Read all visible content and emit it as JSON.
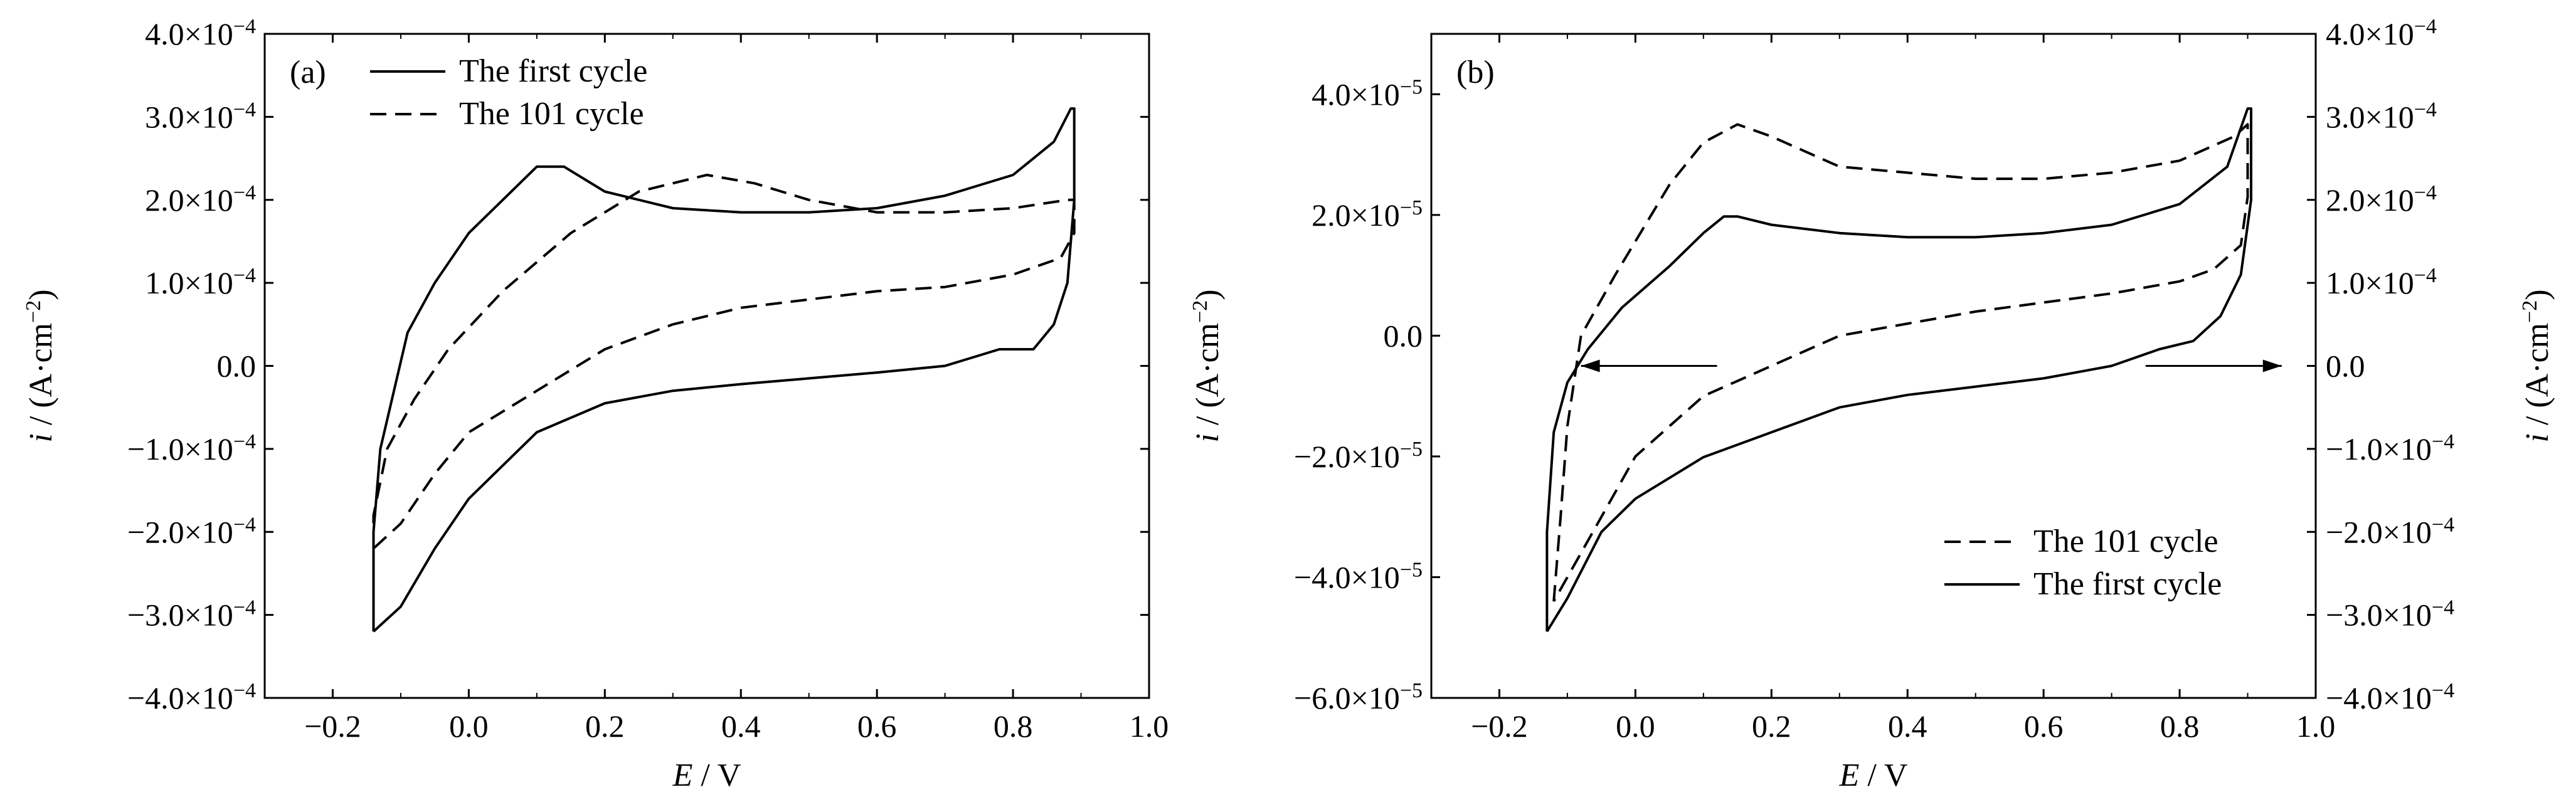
{
  "chart_data": [
    {
      "type": "line",
      "panel_label": "(a)",
      "xlabel_italic": "E",
      "xlabel_rest": " / V",
      "ylabel_italic": "i",
      "ylabel_rest": " / (A·cm",
      "ylabel_exp": "−2",
      "ylabel_close": ")",
      "xlim": [
        -0.3,
        1.0
      ],
      "ylim": [
        -0.0004,
        0.0004
      ],
      "xticks": [
        -0.2,
        0.0,
        0.2,
        0.4,
        0.6,
        0.8,
        1.0
      ],
      "xtick_labels": [
        "−0.2",
        "0.0",
        "0.2",
        "0.4",
        "0.6",
        "0.8",
        "1.0"
      ],
      "yticks": [
        {
          "value": 0.0004,
          "mantissa": "4.0",
          "exp": "−4"
        },
        {
          "value": 0.0003,
          "mantissa": "3.0",
          "exp": "−4"
        },
        {
          "value": 0.0002,
          "mantissa": "2.0",
          "exp": "−4"
        },
        {
          "value": 0.0001,
          "mantissa": "1.0",
          "exp": "−4"
        },
        {
          "value": 0.0,
          "mantissa": "0.0",
          "exp": ""
        },
        {
          "value": -0.0001,
          "mantissa": "−1.0",
          "exp": "−4"
        },
        {
          "value": -0.0002,
          "mantissa": "−2.0",
          "exp": "−4"
        },
        {
          "value": -0.0003,
          "mantissa": "−3.0",
          "exp": "−4"
        },
        {
          "value": -0.0004,
          "mantissa": "−4.0",
          "exp": "−4"
        }
      ],
      "legend": "top-left",
      "series": [
        {
          "name": "The first cycle",
          "dash": "solid",
          "points": [
            [
              -0.14,
              -0.00032
            ],
            [
              -0.14,
              -0.0002
            ],
            [
              -0.13,
              -0.0001
            ],
            [
              -0.11,
              -3e-05
            ],
            [
              -0.09,
              4e-05
            ],
            [
              -0.05,
              0.0001
            ],
            [
              0.0,
              0.00016
            ],
            [
              0.05,
              0.0002
            ],
            [
              0.1,
              0.00024
            ],
            [
              0.14,
              0.00024
            ],
            [
              0.2,
              0.00021
            ],
            [
              0.3,
              0.00019
            ],
            [
              0.4,
              0.000185
            ],
            [
              0.5,
              0.000185
            ],
            [
              0.6,
              0.00019
            ],
            [
              0.7,
              0.000205
            ],
            [
              0.8,
              0.00023
            ],
            [
              0.86,
              0.00027
            ],
            [
              0.885,
              0.00031
            ],
            [
              0.89,
              0.00031
            ],
            [
              0.89,
              0.0002
            ],
            [
              0.88,
              0.0001
            ],
            [
              0.86,
              5e-05
            ],
            [
              0.83,
              2e-05
            ],
            [
              0.78,
              2e-05
            ],
            [
              0.7,
              0.0
            ],
            [
              0.6,
              -8e-06
            ],
            [
              0.5,
              -1.5e-05
            ],
            [
              0.4,
              -2.2e-05
            ],
            [
              0.3,
              -3e-05
            ],
            [
              0.2,
              -4.5e-05
            ],
            [
              0.1,
              -8e-05
            ],
            [
              0.0,
              -0.00016
            ],
            [
              -0.05,
              -0.00022
            ],
            [
              -0.1,
              -0.00029
            ],
            [
              -0.14,
              -0.00032
            ]
          ]
        },
        {
          "name": "The 101 cycle",
          "dash": "dashed",
          "points": [
            [
              -0.14,
              -0.00022
            ],
            [
              -0.14,
              -0.00018
            ],
            [
              -0.12,
              -0.0001
            ],
            [
              -0.08,
              -4e-05
            ],
            [
              -0.03,
              2e-05
            ],
            [
              0.05,
              9e-05
            ],
            [
              0.15,
              0.00016
            ],
            [
              0.25,
              0.00021
            ],
            [
              0.35,
              0.00023
            ],
            [
              0.42,
              0.00022
            ],
            [
              0.5,
              0.0002
            ],
            [
              0.6,
              0.000185
            ],
            [
              0.7,
              0.000185
            ],
            [
              0.8,
              0.00019
            ],
            [
              0.88,
              0.0002
            ],
            [
              0.89,
              0.0002
            ],
            [
              0.89,
              0.00016
            ],
            [
              0.87,
              0.00013
            ],
            [
              0.8,
              0.00011
            ],
            [
              0.7,
              9.5e-05
            ],
            [
              0.6,
              9e-05
            ],
            [
              0.5,
              8e-05
            ],
            [
              0.4,
              7e-05
            ],
            [
              0.3,
              5e-05
            ],
            [
              0.2,
              2e-05
            ],
            [
              0.1,
              -3e-05
            ],
            [
              0.0,
              -8e-05
            ],
            [
              -0.05,
              -0.00013
            ],
            [
              -0.1,
              -0.00019
            ],
            [
              -0.14,
              -0.00022
            ]
          ]
        }
      ]
    },
    {
      "type": "line",
      "panel_label": "(b)",
      "xlabel_italic": "E",
      "xlabel_rest": " / V",
      "ylabel_italic": "i",
      "ylabel_rest": " / (A·cm",
      "ylabel_exp": "−2",
      "ylabel_close": ")",
      "xlim": [
        -0.3,
        1.0
      ],
      "ylim": [
        -6e-05,
        5e-05
      ],
      "xticks": [
        -0.2,
        0.0,
        0.2,
        0.4,
        0.6,
        0.8,
        1.0
      ],
      "xtick_labels": [
        "−0.2",
        "0.0",
        "0.2",
        "0.4",
        "0.6",
        "0.8",
        "1.0"
      ],
      "yticks": [
        {
          "value": 4e-05,
          "mantissa": "4.0",
          "exp": "−5"
        },
        {
          "value": 2e-05,
          "mantissa": "2.0",
          "exp": "−5"
        },
        {
          "value": 0.0,
          "mantissa": "0.0",
          "exp": ""
        },
        {
          "value": -2e-05,
          "mantissa": "−2.0",
          "exp": "−5"
        },
        {
          "value": -4e-05,
          "mantissa": "−4.0",
          "exp": "−5"
        },
        {
          "value": -6e-05,
          "mantissa": "−6.0",
          "exp": "−5"
        }
      ],
      "ylim_right": [
        -0.0004,
        0.0004
      ],
      "yticks_right": [
        {
          "value": 0.0004,
          "mantissa": "4.0",
          "exp": "−4"
        },
        {
          "value": 0.0003,
          "mantissa": "3.0",
          "exp": "−4"
        },
        {
          "value": 0.0002,
          "mantissa": "2.0",
          "exp": "−4"
        },
        {
          "value": 0.0001,
          "mantissa": "1.0",
          "exp": "−4"
        },
        {
          "value": 0.0,
          "mantissa": "0.0",
          "exp": ""
        },
        {
          "value": -0.0001,
          "mantissa": "−1.0",
          "exp": "−4"
        },
        {
          "value": -0.0002,
          "mantissa": "−2.0",
          "exp": "−4"
        },
        {
          "value": -0.0003,
          "mantissa": "−3.0",
          "exp": "−4"
        },
        {
          "value": -0.0004,
          "mantissa": "−4.0",
          "exp": "−4"
        }
      ],
      "legend": "bottom-right",
      "series": [
        {
          "name": "The 101 cycle",
          "dash": "dashed",
          "axis": "left",
          "points": [
            [
              -0.12,
              -4.4e-05
            ],
            [
              -0.11,
              -3e-05
            ],
            [
              -0.1,
              -1.5e-05
            ],
            [
              -0.08,
              0.0
            ],
            [
              -0.03,
              1e-05
            ],
            [
              0.05,
              2.5e-05
            ],
            [
              0.1,
              3.2e-05
            ],
            [
              0.15,
              3.5e-05
            ],
            [
              0.2,
              3.3e-05
            ],
            [
              0.3,
              2.8e-05
            ],
            [
              0.4,
              2.7e-05
            ],
            [
              0.5,
              2.6e-05
            ],
            [
              0.6,
              2.6e-05
            ],
            [
              0.7,
              2.7e-05
            ],
            [
              0.8,
              2.9e-05
            ],
            [
              0.88,
              3.3e-05
            ],
            [
              0.9,
              3.5e-05
            ],
            [
              0.9,
              2.3e-05
            ],
            [
              0.89,
              1.5e-05
            ],
            [
              0.85,
              1.1e-05
            ],
            [
              0.8,
              9e-06
            ],
            [
              0.7,
              7e-06
            ],
            [
              0.6,
              5.5e-06
            ],
            [
              0.5,
              4e-06
            ],
            [
              0.4,
              2e-06
            ],
            [
              0.3,
              0.0
            ],
            [
              0.2,
              -5e-06
            ],
            [
              0.1,
              -1e-05
            ],
            [
              0.0,
              -2e-05
            ],
            [
              -0.05,
              -3e-05
            ],
            [
              -0.1,
              -4e-05
            ],
            [
              -0.12,
              -4.4e-05
            ]
          ]
        },
        {
          "name": "The first cycle",
          "dash": "solid",
          "axis": "right",
          "points": [
            [
              -0.13,
              -0.00032
            ],
            [
              -0.13,
              -0.0002
            ],
            [
              -0.12,
              -8e-05
            ],
            [
              -0.1,
              -2e-05
            ],
            [
              -0.07,
              2e-05
            ],
            [
              -0.02,
              7e-05
            ],
            [
              0.05,
              0.00012
            ],
            [
              0.1,
              0.00016
            ],
            [
              0.13,
              0.00018
            ],
            [
              0.15,
              0.00018
            ],
            [
              0.2,
              0.00017
            ],
            [
              0.3,
              0.00016
            ],
            [
              0.4,
              0.000155
            ],
            [
              0.5,
              0.000155
            ],
            [
              0.6,
              0.00016
            ],
            [
              0.7,
              0.00017
            ],
            [
              0.8,
              0.000195
            ],
            [
              0.87,
              0.00024
            ],
            [
              0.9,
              0.00031
            ],
            [
              0.905,
              0.00031
            ],
            [
              0.905,
              0.0002
            ],
            [
              0.89,
              0.00011
            ],
            [
              0.86,
              6e-05
            ],
            [
              0.82,
              3e-05
            ],
            [
              0.77,
              2e-05
            ],
            [
              0.7,
              0.0
            ],
            [
              0.6,
              -1.5e-05
            ],
            [
              0.5,
              -2.5e-05
            ],
            [
              0.4,
              -3.5e-05
            ],
            [
              0.3,
              -5e-05
            ],
            [
              0.2,
              -8e-05
            ],
            [
              0.1,
              -0.00011
            ],
            [
              0.0,
              -0.00016
            ],
            [
              -0.05,
              -0.0002
            ],
            [
              -0.1,
              -0.00028
            ],
            [
              -0.13,
              -0.00032
            ]
          ]
        }
      ],
      "arrows": [
        {
          "direction": "left",
          "x_from": 0.12,
          "x_to": -0.08,
          "y": 0.0,
          "axis": "right"
        },
        {
          "direction": "right",
          "x_from": 0.75,
          "x_to": 0.95,
          "y": 0.0,
          "axis": "right"
        }
      ]
    }
  ]
}
